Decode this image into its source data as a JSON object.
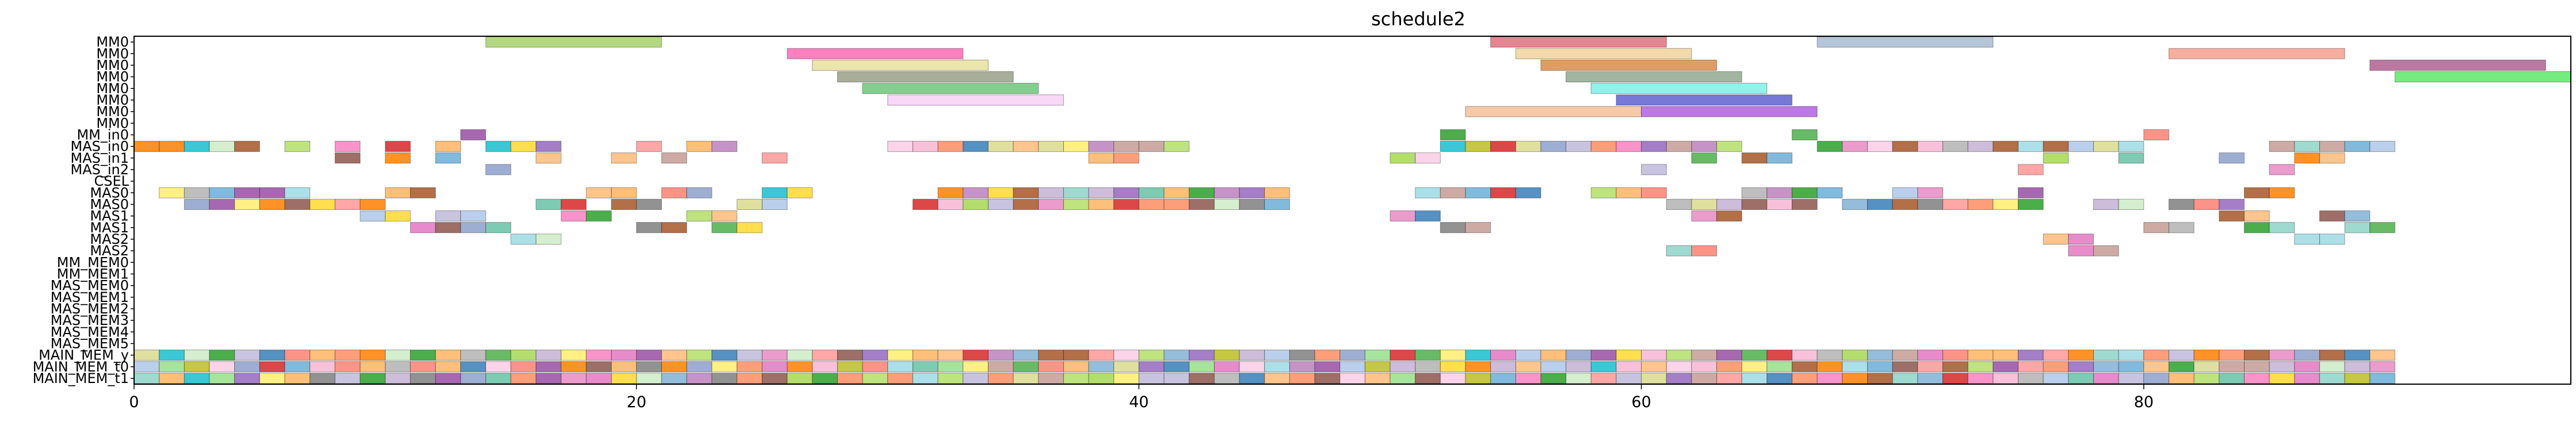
{
  "chart_data": {
    "type": "gantt",
    "title": "schedule2",
    "xlabel": "",
    "ylabel": "",
    "xlim": [
      0,
      97
    ],
    "x_ticks": [
      0,
      20,
      40,
      60,
      80
    ],
    "grid": false,
    "rows": [
      "MM0",
      "MM0",
      "MM0",
      "MM0",
      "MM0",
      "MM0",
      "MM0",
      "MM0",
      "MM_in0",
      "MAS_in0",
      "MAS_in1",
      "MAS_in2",
      "CSEL",
      "MAS0",
      "MAS0",
      "MAS1",
      "MAS1",
      "MAS2",
      "MAS2",
      "MM_MEM0",
      "MM_MEM1",
      "MAS_MEM0",
      "MAS_MEM1",
      "MAS_MEM2",
      "MAS_MEM3",
      "MAS_MEM4",
      "MAS_MEM5",
      "MAIN_MEM_y",
      "MAIN_MEM_t0",
      "MAIN_MEM_t1"
    ],
    "tasks": [
      {
        "row": 0,
        "start": 14,
        "end": 21,
        "color": "#a6d16b"
      },
      {
        "row": 0,
        "start": 54,
        "end": 61,
        "color": "#e0707f"
      },
      {
        "row": 0,
        "start": 67,
        "end": 74,
        "color": "#a8bcd2"
      },
      {
        "row": 1,
        "start": 26,
        "end": 33,
        "color": "#ff69b4"
      },
      {
        "row": 1,
        "start": 55,
        "end": 62,
        "color": "#f2d39b"
      },
      {
        "row": 1,
        "start": 81,
        "end": 88,
        "color": "#f4a08e"
      },
      {
        "row": 2,
        "start": 27,
        "end": 34,
        "color": "#e8e0a0"
      },
      {
        "row": 2,
        "start": 56,
        "end": 63,
        "color": "#d98c4a"
      },
      {
        "row": 2,
        "start": 89,
        "end": 96,
        "color": "#b06090"
      },
      {
        "row": 3,
        "start": 28,
        "end": 35,
        "color": "#9aa08a"
      },
      {
        "row": 3,
        "start": 57,
        "end": 64,
        "color": "#90a890"
      },
      {
        "row": 3,
        "start": 90,
        "end": 97,
        "color": "#5ee86a"
      },
      {
        "row": 4,
        "start": 29,
        "end": 36,
        "color": "#6dc47a"
      },
      {
        "row": 4,
        "start": 58,
        "end": 65,
        "color": "#7ff0e8"
      },
      {
        "row": 5,
        "start": 30,
        "end": 37,
        "color": "#f8d0f4"
      },
      {
        "row": 5,
        "start": 59,
        "end": 66,
        "color": "#6060d0"
      },
      {
        "row": 6,
        "start": 53,
        "end": 60,
        "color": "#f4c09a"
      },
      {
        "row": 6,
        "start": 60,
        "end": 67,
        "color": "#b060e0"
      }
    ],
    "main_mem_rows": [
      "MAIN_MEM_y",
      "MAIN_MEM_t0",
      "MAIN_MEM_t1"
    ],
    "main_mem_range": [
      0,
      90
    ]
  }
}
